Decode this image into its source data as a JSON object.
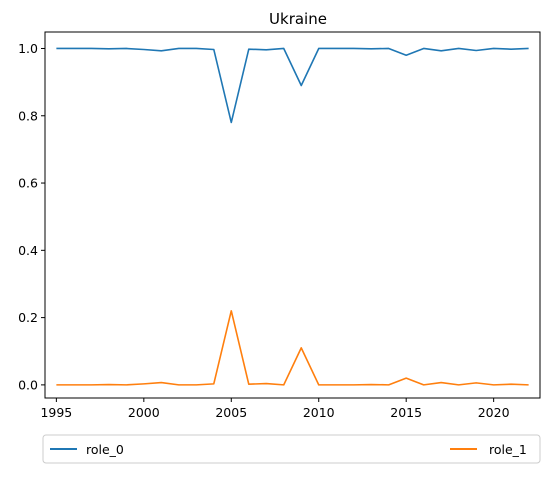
{
  "chart_data": {
    "type": "line",
    "title": "Ukraine",
    "xlabel": "",
    "ylabel": "",
    "xlim": [
      1994.35,
      2022.65
    ],
    "ylim": [
      -0.039,
      1.049
    ],
    "xticks": [
      1995,
      2000,
      2005,
      2010,
      2015,
      2020
    ],
    "yticks": [
      0.0,
      0.2,
      0.4,
      0.6,
      0.8,
      1.0
    ],
    "grid": false,
    "legend_position": "bottom",
    "x": [
      1995,
      1996,
      1997,
      1998,
      1999,
      2000,
      2001,
      2002,
      2003,
      2004,
      2005,
      2006,
      2007,
      2008,
      2009,
      2010,
      2011,
      2012,
      2013,
      2014,
      2015,
      2016,
      2017,
      2018,
      2019,
      2020,
      2021,
      2022
    ],
    "series": [
      {
        "name": "role_0",
        "color": "#1f77b4",
        "values": [
          1.0,
          1.0,
          1.0,
          0.999,
          1.0,
          0.997,
          0.993,
          1.0,
          1.0,
          0.997,
          0.78,
          0.998,
          0.996,
          1.0,
          0.89,
          1.0,
          1.0,
          1.0,
          0.999,
          1.0,
          0.98,
          1.0,
          0.993,
          1.0,
          0.994,
          1.0,
          0.998,
          1.0
        ]
      },
      {
        "name": "role_1",
        "color": "#ff7f0e",
        "values": [
          0.0,
          0.0,
          0.0,
          0.001,
          0.0,
          0.003,
          0.007,
          0.0,
          0.0,
          0.003,
          0.22,
          0.002,
          0.004,
          0.0,
          0.11,
          0.0,
          0.0,
          0.0,
          0.001,
          0.0,
          0.02,
          0.0,
          0.007,
          0.0,
          0.006,
          0.0,
          0.002,
          0.0
        ]
      }
    ]
  }
}
